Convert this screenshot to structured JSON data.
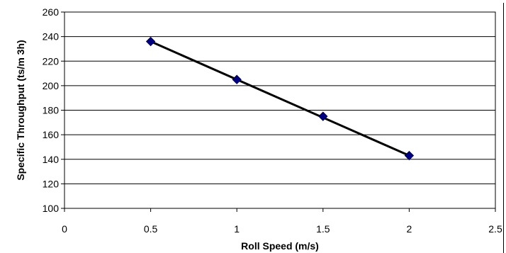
{
  "chart_data": {
    "type": "scatter",
    "xlabel": "Roll Speed (m/s)",
    "ylabel": "Specific Throughput (ts/m  3h)",
    "xlim": [
      0,
      2.5
    ],
    "ylim": [
      100,
      260
    ],
    "x_ticks": [
      0,
      0.5,
      1,
      1.5,
      2,
      2.5
    ],
    "x_tick_labels": [
      "0",
      "0.5",
      "1",
      "1.5",
      "2",
      "2.5"
    ],
    "y_ticks": [
      100,
      120,
      140,
      160,
      180,
      200,
      220,
      240,
      260
    ],
    "y_tick_labels": [
      "100",
      "120",
      "140",
      "160",
      "180",
      "200",
      "220",
      "240",
      "260"
    ],
    "grid": "horizontal",
    "series": [
      {
        "x": [
          0.5,
          1,
          1.5,
          2
        ],
        "y": [
          236,
          205,
          175,
          143
        ],
        "marker": "diamond",
        "marker_color": "#000080"
      }
    ],
    "trendline": {
      "x": [
        0.5,
        2
      ],
      "y": [
        236,
        143
      ],
      "color": "#000000"
    }
  }
}
